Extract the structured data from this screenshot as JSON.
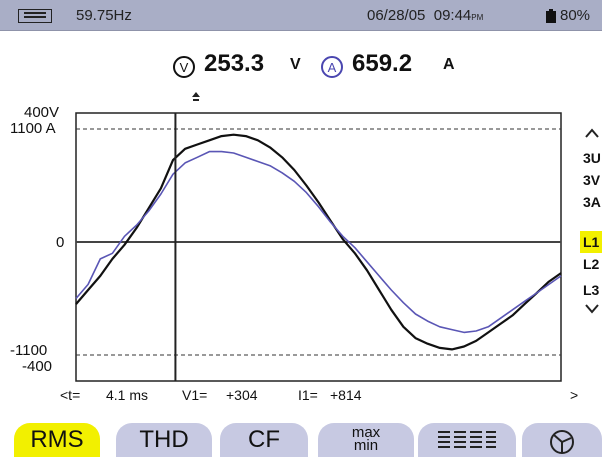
{
  "status": {
    "frequency": "59.75Hz",
    "date": "06/28/05",
    "time": "09:44",
    "ampm": "PM",
    "battery": "80%"
  },
  "readout": {
    "voltage": "253.3",
    "voltage_unit": "V",
    "current": "659.2",
    "current_unit": "A",
    "voltage_icon_letter": "V",
    "current_icon_letter": "A"
  },
  "scale": {
    "v_max": "400V",
    "a_max": "1100 A",
    "zero": "0",
    "a_min": "-1100",
    "v_min": "-400"
  },
  "side": {
    "items": [
      "3U",
      "3V",
      "3A",
      "L1",
      "L2",
      "L3"
    ],
    "active": "L1"
  },
  "cursor": {
    "t_label": "<t=",
    "t_value": "4.1 ms",
    "v_label": "V1=",
    "v_value": "+304",
    "i_label": "I1=",
    "i_value": "+814",
    "right_arrow": ">"
  },
  "tabs": [
    "RMS",
    "THD",
    "CF",
    "max min",
    "list",
    "phasor"
  ],
  "tab_labels": {
    "rms": "RMS",
    "thd": "THD",
    "cf": "CF",
    "max": "max",
    "min": "min"
  },
  "colors": {
    "status_bg": "#a9aec6",
    "voltage_trace": "#111111",
    "current_trace": "#5a56b5",
    "active": "#f2f000",
    "tab_bg": "#c7c9e2"
  },
  "chart_data": {
    "type": "line",
    "x": [
      0,
      0.5,
      1,
      1.5,
      2,
      2.5,
      3,
      3.5,
      4,
      4.5,
      5,
      5.5,
      6,
      6.5,
      7,
      7.5,
      8,
      8.5,
      9,
      9.5,
      10,
      10.5,
      11,
      11.5,
      12,
      12.5,
      13,
      13.5,
      14,
      14.5,
      15,
      15.5,
      16,
      16.5,
      17,
      17.5,
      18,
      18.5,
      19,
      19.5,
      20
    ],
    "series": [
      {
        "values": [
          -220,
          -170,
          -120,
          -60,
          -10,
          50,
          120,
          190,
          290,
          330,
          345,
          360,
          375,
          380,
          375,
          360,
          335,
          300,
          255,
          200,
          140,
          75,
          10,
          -40,
          -100,
          -170,
          -240,
          -300,
          -340,
          -360,
          -375,
          -380,
          -370,
          -350,
          -320,
          -290,
          -260,
          -220,
          -180,
          -140,
          -110
        ]
      },
      {
        "values": [
          -200,
          -150,
          -60,
          -40,
          20,
          60,
          110,
          170,
          240,
          280,
          300,
          320,
          320,
          315,
          300,
          285,
          270,
          245,
          215,
          175,
          125,
          70,
          20,
          -20,
          -70,
          -120,
          -170,
          -215,
          -255,
          -280,
          -300,
          -310,
          -320,
          -315,
          -300,
          -270,
          -240,
          -210,
          -180,
          -150,
          -120
        ]
      }
    ],
    "ylim": [
      -400,
      400
    ],
    "xlim": [
      0,
      20
    ],
    "cursor_x": 4.1,
    "grid": "dashed at max/min, solid zero line"
  }
}
